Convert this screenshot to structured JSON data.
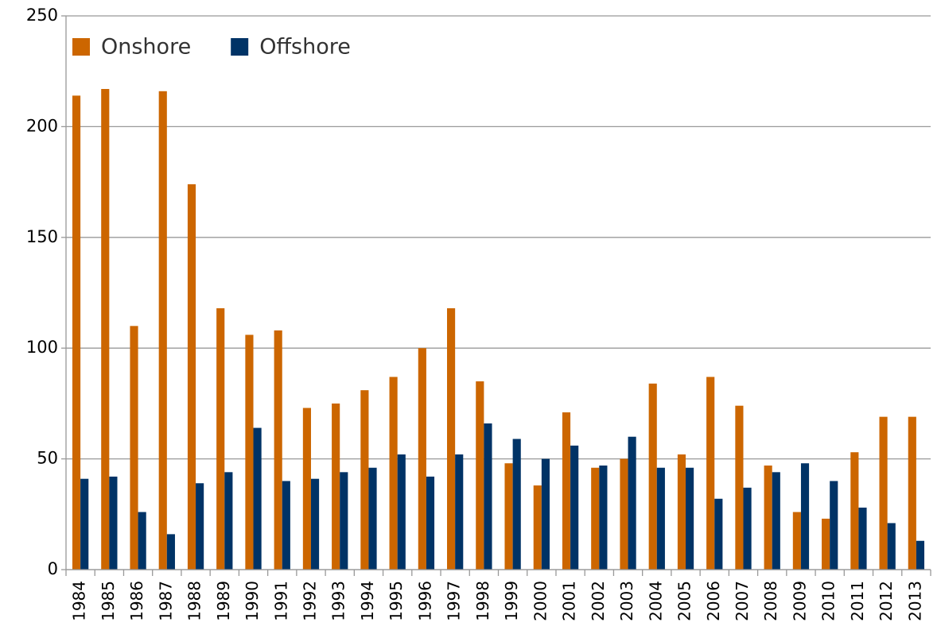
{
  "chart_data": {
    "type": "bar",
    "categories": [
      "1984",
      "1985",
      "1986",
      "1987",
      "1988",
      "1989",
      "1990",
      "1991",
      "1992",
      "1993",
      "1994",
      "1995",
      "1996",
      "1997",
      "1998",
      "1999",
      "2000",
      "2001",
      "2002",
      "2003",
      "2004",
      "2005",
      "2006",
      "2007",
      "2008",
      "2009",
      "2010",
      "2011",
      "2012",
      "2013"
    ],
    "series": [
      {
        "name": "Onshore",
        "color": "#cc6600",
        "values": [
          214,
          217,
          110,
          216,
          174,
          118,
          106,
          108,
          73,
          75,
          81,
          87,
          100,
          118,
          85,
          48,
          38,
          71,
          46,
          50,
          84,
          52,
          87,
          74,
          47,
          26,
          23,
          53,
          69,
          69
        ]
      },
      {
        "name": "Offshore",
        "color": "#003366",
        "values": [
          41,
          42,
          26,
          16,
          39,
          44,
          64,
          40,
          41,
          44,
          46,
          52,
          42,
          52,
          66,
          59,
          50,
          56,
          47,
          60,
          46,
          46,
          32,
          37,
          44,
          48,
          40,
          28,
          21,
          13
        ]
      }
    ],
    "ylim": [
      0,
      250
    ],
    "yticks": [
      0,
      50,
      100,
      150,
      200,
      250
    ],
    "grid": true,
    "legend": "top-left"
  }
}
